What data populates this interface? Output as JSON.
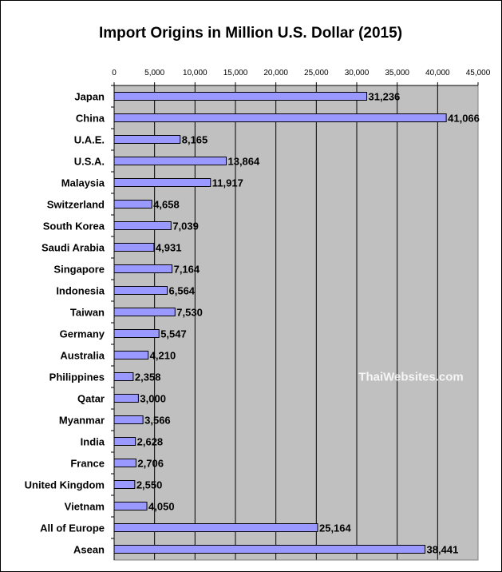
{
  "chart_data": {
    "type": "bar",
    "orientation": "horizontal",
    "title": "Import Origins in Million U.S. Dollar (2015)",
    "xlabel": "",
    "ylabel": "",
    "xlim": [
      0,
      45000
    ],
    "tick_step": 5000,
    "tick_labels": [
      "0",
      "5,000",
      "10,000",
      "15,000",
      "20,000",
      "25,000",
      "30,000",
      "35,000",
      "40,000",
      "45,000"
    ],
    "axis_position": "top",
    "grid": true,
    "legend": "none",
    "categories": [
      "Japan",
      "China",
      "U.A.E.",
      "U.S.A.",
      "Malaysia",
      "Switzerland",
      "South Korea",
      "Saudi Arabia",
      "Singapore",
      "Indonesia",
      "Taiwan",
      "Germany",
      "Australia",
      "Philippines",
      "Qatar",
      "Myanmar",
      "India",
      "France",
      "United Kingdom",
      "Vietnam",
      "All of Europe",
      "Asean"
    ],
    "values": [
      31236,
      41066,
      8165,
      13864,
      11917,
      4658,
      7039,
      4931,
      7164,
      6564,
      7530,
      5547,
      4210,
      2358,
      3000,
      3566,
      2628,
      2706,
      2550,
      4050,
      25164,
      38441
    ],
    "value_labels": [
      "31,236",
      "41,066",
      "8,165",
      "13,864",
      "11,917",
      "4,658",
      "7,039",
      "4,931",
      "7,164",
      "6,564",
      "7,530",
      "5,547",
      "4,210",
      "2,358",
      "3,000",
      "3,566",
      "2,628",
      "2,706",
      "2,550",
      "4,050",
      "25,164",
      "38,441"
    ],
    "watermark": "ThaiWebsites.com",
    "colors": {
      "bar_fill": "#9999ff",
      "bar_stroke": "#000000",
      "plot_background": "#c0c0c0",
      "gridline": "#000000",
      "page_background": "#ffffff",
      "frame": "#000000"
    }
  }
}
